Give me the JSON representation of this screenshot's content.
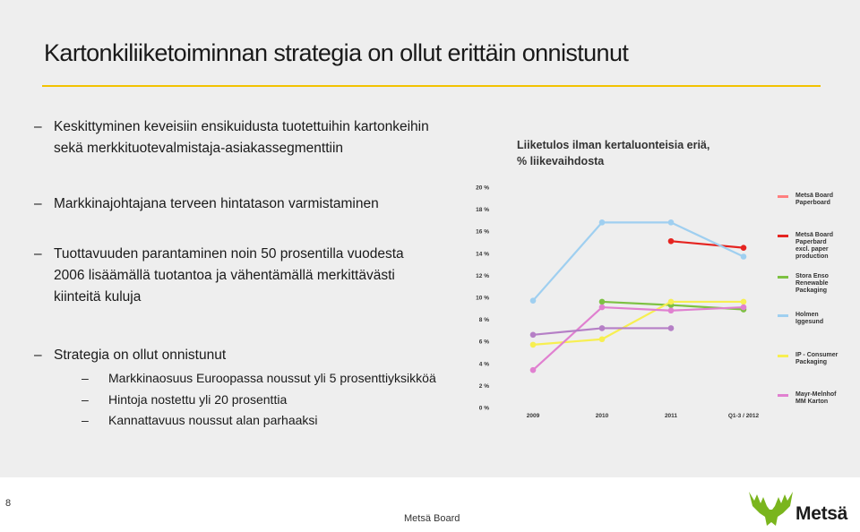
{
  "slide": {
    "title": "Kartonkiliiketoiminnan strategia on ollut erittäin onnistunut",
    "bullets": [
      {
        "lines": [
          "Keskittyminen keveisiin ensikuidusta tuotettuihin kartonkeihin",
          "sekä merkkituotevalmistaja-asiakassegmenttiin"
        ]
      },
      {
        "lines": [
          "Markkinajohtajana terveen hintatason varmistaminen"
        ]
      },
      {
        "lines": [
          "Tuottavuuden parantaminen noin 50 prosentilla vuodesta",
          "2006 lisäämällä tuotantoa ja vähentämällä merkittävästi",
          "kiinteitä kuluja"
        ]
      },
      {
        "lines": [
          "Strategia on ollut onnistunut"
        ]
      }
    ],
    "sub_bullets": [
      "Markkinaosuus Euroopassa noussut yli 5 prosenttiyksikköä",
      "Hintoja nostettu yli 20 prosenttia",
      "Kannattavuus noussut alan parhaaksi"
    ],
    "dash": "–"
  },
  "chart_heading": [
    "Liiketulos ilman kertaluonteisia eriä,",
    "% liikevaihdosta"
  ],
  "chart_data": {
    "type": "line",
    "categories": [
      "2009",
      "2010",
      "2011",
      "Q1-3 / 2012"
    ],
    "y_ticks": [
      "0 %",
      "2 %",
      "4 %",
      "6 %",
      "8 %",
      "10 %",
      "12 %",
      "14 %",
      "16 %",
      "18 %",
      "20 %"
    ],
    "ylim": [
      0,
      20
    ],
    "grid": false,
    "legend_position": "right",
    "series": [
      {
        "name": "Metsä Board Paperboard",
        "color": "#ff7f7f",
        "values": [
          null,
          null,
          null,
          null
        ]
      },
      {
        "name": "Metsä Board Paperbard excl. paper production",
        "color": "#e52420",
        "values": [
          null,
          null,
          15.1,
          14.5
        ]
      },
      {
        "name": "Stora Enso Renewable Packaging",
        "color": "#7dc142",
        "values": [
          null,
          9.6,
          9.3,
          8.9
        ]
      },
      {
        "name": "Holmen Iggesund",
        "color": "#9fcff0",
        "values": [
          9.7,
          16.8,
          16.8,
          13.7
        ]
      },
      {
        "name": "IP - Consumer Packaging",
        "color": "#f7ef51",
        "values": [
          5.7,
          6.2,
          9.6,
          9.6
        ]
      },
      {
        "name": "Mayr-Melnhof MM Karton",
        "color": "#e080d0",
        "values": [
          3.4,
          9.1,
          8.8,
          9.1
        ]
      },
      {
        "name": "",
        "color": "#b57fc6",
        "values": [
          6.6,
          7.2,
          7.2,
          null
        ]
      }
    ]
  },
  "legend": [
    {
      "lines": [
        "Metsä Board",
        "Paperboard"
      ],
      "color": "#ff7f7f"
    },
    {
      "lines": [
        "Metsä Board",
        "Paperbard",
        "excl. paper",
        "production"
      ],
      "color": "#e52420"
    },
    {
      "lines": [
        "Stora Enso",
        "Renewable",
        "Packaging"
      ],
      "color": "#7dc142"
    },
    {
      "lines": [
        "Holmen",
        "Iggesund"
      ],
      "color": "#9fcff0"
    },
    {
      "lines": [
        "IP - Consumer",
        "Packaging"
      ],
      "color": "#f7ef51"
    },
    {
      "lines": [
        "Mayr-Melnhof",
        "MM Karton"
      ],
      "color": "#e080d0"
    }
  ],
  "footer": {
    "page_number": "8",
    "org_name": "Metsä Board",
    "logo_text": "Metsä",
    "logo_icon": "moose-antler-icon"
  },
  "colors": {
    "rule": "#f2c200",
    "logo_green": "#7ab51d"
  }
}
